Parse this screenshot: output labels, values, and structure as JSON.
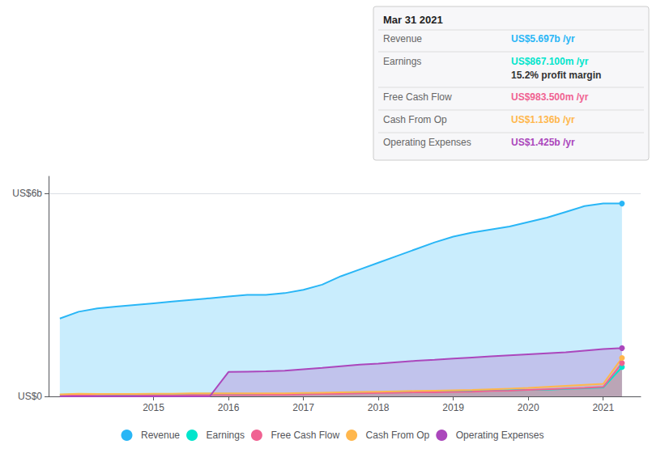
{
  "chart_data": {
    "type": "area",
    "title": "Mar 31 2021",
    "annotations": [
      {
        "label": "Revenue",
        "value": "US$5.697b /yr",
        "color": "#29b6f6"
      },
      {
        "label": "Earnings",
        "value": "US$867.100m /yr",
        "color": "#00e5cc",
        "sub": "15.2% profit margin"
      },
      {
        "label": "Free Cash Flow",
        "value": "US$983.500m /yr",
        "color": "#f06292"
      },
      {
        "label": "Cash From Op",
        "value": "US$1.136b /yr",
        "color": "#ffb74d"
      },
      {
        "label": "Operating Expenses",
        "value": "US$1.425b /yr",
        "color": "#ab47bc"
      }
    ],
    "x": [
      2013.75,
      2014.0,
      2014.25,
      2014.5,
      2014.75,
      2015.0,
      2015.25,
      2015.5,
      2015.75,
      2016.0,
      2016.25,
      2016.5,
      2016.75,
      2017.0,
      2017.25,
      2017.5,
      2017.75,
      2018.0,
      2018.25,
      2018.5,
      2018.75,
      2019.0,
      2019.25,
      2019.5,
      2019.75,
      2020.0,
      2020.25,
      2020.5,
      2020.75,
      2021.0,
      2021.25
    ],
    "series": [
      {
        "name": "Revenue",
        "color": "#29b6f6",
        "values": [
          2.3,
          2.5,
          2.6,
          2.65,
          2.7,
          2.75,
          2.8,
          2.85,
          2.9,
          2.95,
          3.0,
          3.0,
          3.05,
          3.15,
          3.3,
          3.55,
          3.75,
          3.95,
          4.15,
          4.35,
          4.55,
          4.72,
          4.84,
          4.93,
          5.02,
          5.15,
          5.28,
          5.45,
          5.62,
          5.7,
          5.697
        ]
      },
      {
        "name": "Earnings",
        "color": "#00e5cc",
        "values": [
          0.05,
          0.06,
          0.06,
          0.05,
          0.05,
          0.06,
          0.06,
          0.07,
          0.08,
          0.08,
          0.07,
          0.07,
          0.07,
          0.08,
          0.09,
          0.1,
          0.11,
          0.12,
          0.13,
          0.14,
          0.15,
          0.15,
          0.16,
          0.17,
          0.18,
          0.19,
          0.2,
          0.22,
          0.24,
          0.26,
          0.867
        ]
      },
      {
        "name": "Free Cash Flow",
        "color": "#f06292",
        "values": [
          0.02,
          0.03,
          0.02,
          0.02,
          0.02,
          0.03,
          0.03,
          0.04,
          0.04,
          0.04,
          0.04,
          0.05,
          0.05,
          0.06,
          0.07,
          0.08,
          0.09,
          0.1,
          0.11,
          0.12,
          0.12,
          0.13,
          0.14,
          0.16,
          0.17,
          0.19,
          0.21,
          0.23,
          0.25,
          0.28,
          0.9835
        ]
      },
      {
        "name": "Cash From Op",
        "color": "#ffb74d",
        "values": [
          0.06,
          0.08,
          0.07,
          0.07,
          0.07,
          0.08,
          0.08,
          0.09,
          0.09,
          0.09,
          0.09,
          0.09,
          0.09,
          0.1,
          0.11,
          0.12,
          0.13,
          0.14,
          0.15,
          0.16,
          0.17,
          0.18,
          0.19,
          0.21,
          0.23,
          0.25,
          0.28,
          0.31,
          0.34,
          0.37,
          1.136
        ]
      },
      {
        "name": "Operating Expenses",
        "color": "#ab47bc",
        "values": [
          0.0,
          0.0,
          0.0,
          0.0,
          0.0,
          0.0,
          0.0,
          0.0,
          0.0,
          0.72,
          0.73,
          0.74,
          0.76,
          0.8,
          0.84,
          0.89,
          0.94,
          0.97,
          1.01,
          1.05,
          1.08,
          1.12,
          1.15,
          1.18,
          1.21,
          1.24,
          1.27,
          1.3,
          1.35,
          1.4,
          1.425
        ]
      }
    ],
    "xlim": [
      2013.6,
      2021.5
    ],
    "xticks": [
      2015,
      2016,
      2017,
      2018,
      2019,
      2020,
      2021
    ],
    "ylim": [
      0,
      6.5
    ],
    "yticks": [
      {
        "value": 0,
        "label": "US$0"
      },
      {
        "value": 6,
        "label": "US$6b"
      }
    ],
    "grid": true,
    "legend": "bottom"
  }
}
